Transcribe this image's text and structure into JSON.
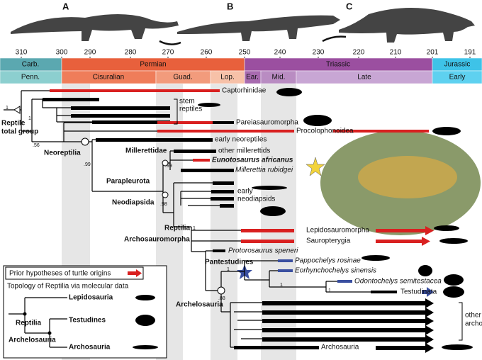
{
  "panels": [
    "A",
    "B",
    "C"
  ],
  "timescale": {
    "ticks": [
      310,
      300,
      290,
      280,
      270,
      260,
      250,
      240,
      230,
      220,
      210,
      201,
      191
    ],
    "periods": [
      "Carb.",
      "Permian",
      "Triassic",
      "Jurassic"
    ],
    "epochs": [
      "Penn.",
      "Cisuralian",
      "Guad.",
      "Lop.",
      "Ear.",
      "Mid.",
      "Late",
      "Early"
    ]
  },
  "clades": [
    "Captorhinidae",
    "stem",
    "reptiles",
    "Pareiasauromorpha",
    "Procolophonoidea",
    "early neoreptiles",
    "other millerettids",
    "Eunotosaurus africanus",
    "Millerettia rubidgei",
    "early",
    "neodiapsids",
    "Lepidosauromorpha",
    "Sauropterygia",
    "Protorosaurus speneri",
    "Pappochelys rosinae",
    "Eorhynchochelys sinensis",
    "Odontochelys semitestacea",
    "Testudinata",
    "other stem",
    "archosaurs",
    "Archosauria"
  ],
  "nodes": [
    "Reptile",
    "total group",
    "Neoreptilia",
    "Millerettidae",
    "Parapleurota",
    "Neodiapsida",
    "Reptilia",
    "Archosauromorpha",
    "Pantestudines",
    "Archelosauria"
  ],
  "support": [
    "1",
    "1",
    ".56",
    ".99",
    ".99",
    ".98",
    "1",
    "1",
    "1",
    "1",
    ".88"
  ],
  "legend": {
    "prior": "Prior hypotheses of turtle origins",
    "topology": "Topology of Reptilia via molecular data",
    "taxa": [
      "Lepidosauria",
      "Testudines",
      "Archosauria"
    ],
    "nodes": [
      "Reptilia",
      "Archelosauria"
    ]
  }
}
